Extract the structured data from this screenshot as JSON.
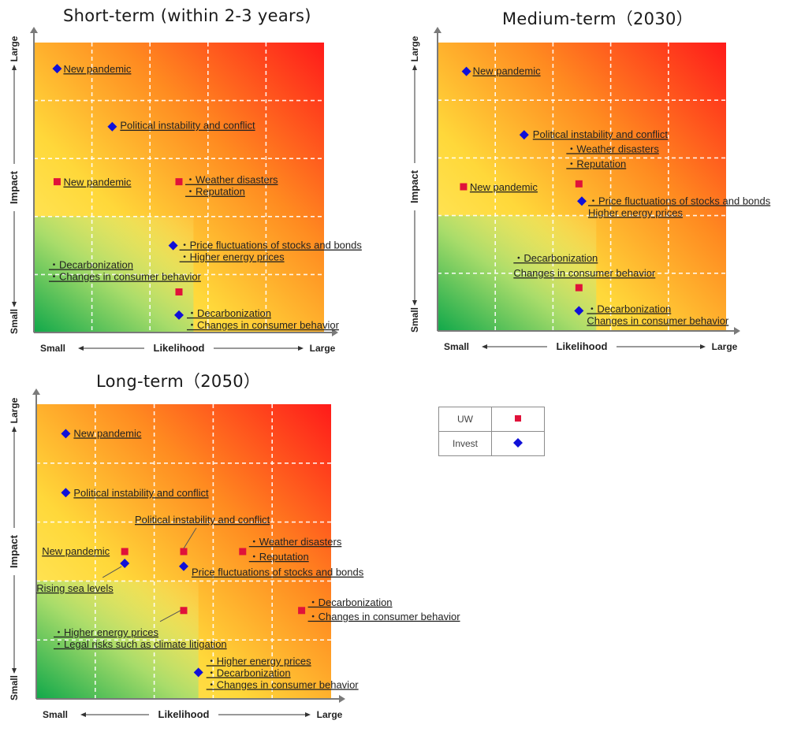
{
  "axis": {
    "x_label": "Likelihood",
    "y_label": "Impact",
    "small": "Small",
    "large": "Large"
  },
  "legend": {
    "uw_label": "UW",
    "invest_label": "Invest",
    "uw_color": "#e0123a",
    "invest_color": "#1010d8"
  },
  "colors": {
    "uw": "#e0123a",
    "invest": "#1010d8",
    "zone_red": "#ff1a1a",
    "zone_yellow": "#fff44a",
    "zone_green": "#10a84a"
  },
  "chart_data": [
    {
      "type": "scatter",
      "title": "Short-term (within 2-3 years)",
      "xlabel": "Likelihood",
      "ylabel": "Impact",
      "xlim": [
        0,
        5
      ],
      "ylim": [
        0,
        5
      ],
      "series": [
        {
          "name": "UW",
          "marker": "square",
          "points": [
            {
              "x": 0.4,
              "y": 2.6,
              "labels": [
                "New pandemic"
              ]
            },
            {
              "x": 2.5,
              "y": 2.6,
              "labels": [
                "・Weather disasters",
                "・Reputation"
              ]
            },
            {
              "x": 2.5,
              "y": 0.7,
              "labels": [
                "・Decarbonization",
                "・Changes in consumer behavior"
              ]
            }
          ]
        },
        {
          "name": "Invest",
          "marker": "diamond",
          "points": [
            {
              "x": 0.4,
              "y": 4.55,
              "labels": [
                "New pandemic"
              ]
            },
            {
              "x": 1.35,
              "y": 3.55,
              "labels": [
                "Political instability and conflict"
              ]
            },
            {
              "x": 2.4,
              "y": 1.5,
              "labels": [
                "・Price fluctuations of stocks and bonds",
                "・Higher energy prices"
              ]
            },
            {
              "x": 2.5,
              "y": 0.3,
              "labels": [
                "・Decarbonization",
                "・Changes in consumer behavior"
              ]
            }
          ]
        }
      ]
    },
    {
      "type": "scatter",
      "title": "Medium-term（2030）",
      "xlabel": "Likelihood",
      "ylabel": "Impact",
      "xlim": [
        0,
        5
      ],
      "ylim": [
        0,
        5
      ],
      "series": [
        {
          "name": "UW",
          "marker": "square",
          "points": [
            {
              "x": 0.45,
              "y": 2.5,
              "labels": [
                "New pandemic"
              ]
            },
            {
              "x": 2.45,
              "y": 2.55,
              "labels": [
                "・Weather disasters",
                "・Reputation"
              ]
            },
            {
              "x": 2.45,
              "y": 0.75,
              "labels": [
                "・Decarbonization",
                "Changes in consumer behavior"
              ]
            }
          ]
        },
        {
          "name": "Invest",
          "marker": "diamond",
          "points": [
            {
              "x": 0.5,
              "y": 4.5,
              "labels": [
                "New pandemic"
              ]
            },
            {
              "x": 1.5,
              "y": 3.4,
              "labels": [
                "Political instability and conflict"
              ]
            },
            {
              "x": 2.5,
              "y": 2.25,
              "labels": [
                "・Price fluctuations of stocks and bonds",
                "Higher energy prices"
              ]
            },
            {
              "x": 2.45,
              "y": 0.35,
              "labels": [
                "・Decarbonization",
                "Changes in consumer behavior"
              ]
            }
          ]
        }
      ]
    },
    {
      "type": "scatter",
      "title": "Long-term（2050）",
      "xlabel": "Likelihood",
      "ylabel": "Impact",
      "xlim": [
        0,
        5
      ],
      "ylim": [
        0,
        5
      ],
      "series": [
        {
          "name": "UW",
          "marker": "square",
          "points": [
            {
              "x": 1.5,
              "y": 2.5,
              "labels": [
                "New pandemic"
              ]
            },
            {
              "x": 2.5,
              "y": 2.5,
              "labels": [
                "Political instability and conflict"
              ]
            },
            {
              "x": 3.5,
              "y": 2.5,
              "labels": [
                "・Weather disasters",
                "・Reputation"
              ]
            },
            {
              "x": 2.5,
              "y": 1.5,
              "labels": [
                "・Higher energy prices",
                "・Legal risks such as climate litigation"
              ]
            },
            {
              "x": 4.5,
              "y": 1.5,
              "labels": [
                "・Decarbonization",
                "・Changes in consumer behavior"
              ]
            }
          ]
        },
        {
          "name": "Invest",
          "marker": "diamond",
          "points": [
            {
              "x": 0.5,
              "y": 4.5,
              "labels": [
                "New pandemic"
              ]
            },
            {
              "x": 0.5,
              "y": 3.5,
              "labels": [
                "Political instability and conflict"
              ]
            },
            {
              "x": 1.5,
              "y": 2.3,
              "labels": [
                "Rising sea levels"
              ]
            },
            {
              "x": 2.5,
              "y": 2.25,
              "labels": [
                "Price fluctuations of stocks and bonds"
              ]
            },
            {
              "x": 2.75,
              "y": 0.45,
              "labels": [
                "・Higher energy prices",
                "・Decarbonization",
                "・Changes in consumer behavior"
              ]
            }
          ]
        }
      ]
    }
  ]
}
